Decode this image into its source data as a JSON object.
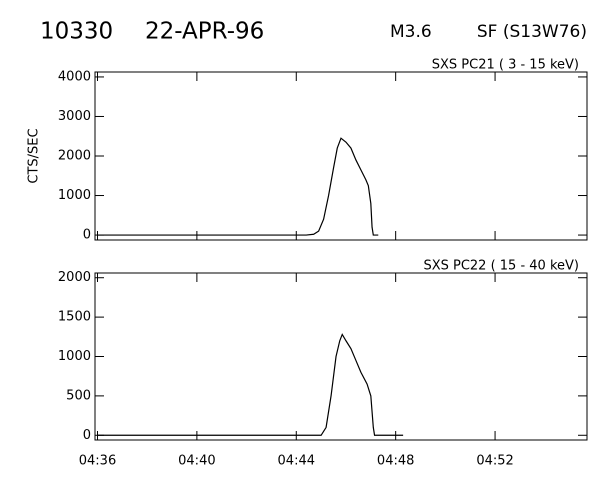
{
  "header": {
    "event": "10330",
    "date": "22-APR-96",
    "class": "M3.6",
    "location": "SF (S13W76)"
  },
  "chart_data": [
    {
      "type": "line",
      "title": "SXS PC21  (  3 - 15 keV)",
      "ylabel": "CTS/SEC",
      "color": "#000000",
      "x": [
        276,
        284.4,
        284.7,
        284.9,
        285.1,
        285.3,
        285.5,
        285.65,
        285.8,
        285.9,
        286.0,
        286.2,
        286.4,
        286.6,
        286.8,
        286.9,
        287.0,
        287.05,
        287.1,
        287.3
      ],
      "values": [
        0,
        0,
        20,
        100,
        400,
        1000,
        1700,
        2200,
        2450,
        2400,
        2350,
        2200,
        1900,
        1650,
        1400,
        1250,
        800,
        200,
        0,
        0
      ],
      "xlim": [
        275.9,
        295.7
      ],
      "xticks": [
        276,
        280,
        284,
        288,
        292
      ],
      "ylim": [
        -125,
        4125
      ],
      "yticks": [
        0,
        1000,
        2000,
        3000,
        4000
      ]
    },
    {
      "type": "line",
      "title": "SXS PC22  ( 15 - 40 keV)",
      "color": "#000000",
      "x": [
        276,
        284.9,
        285.0,
        285.2,
        285.4,
        285.6,
        285.75,
        285.85,
        286.0,
        286.2,
        286.4,
        286.6,
        286.85,
        287.0,
        287.1,
        287.15,
        288.3
      ],
      "values": [
        0,
        0,
        0,
        100,
        500,
        1000,
        1200,
        1280,
        1200,
        1100,
        950,
        800,
        650,
        500,
        100,
        0,
        0
      ],
      "xlim": [
        275.9,
        295.7
      ],
      "xticks": [
        {
          "value": 276,
          "label": "04:36"
        },
        {
          "value": 280,
          "label": "04:40"
        },
        {
          "value": 284,
          "label": "04:44"
        },
        {
          "value": 288,
          "label": "04:48"
        },
        {
          "value": 292,
          "label": "04:52"
        }
      ],
      "ylim": [
        -60,
        2060
      ],
      "yticks": [
        0,
        500,
        1000,
        1500,
        2000
      ]
    }
  ]
}
